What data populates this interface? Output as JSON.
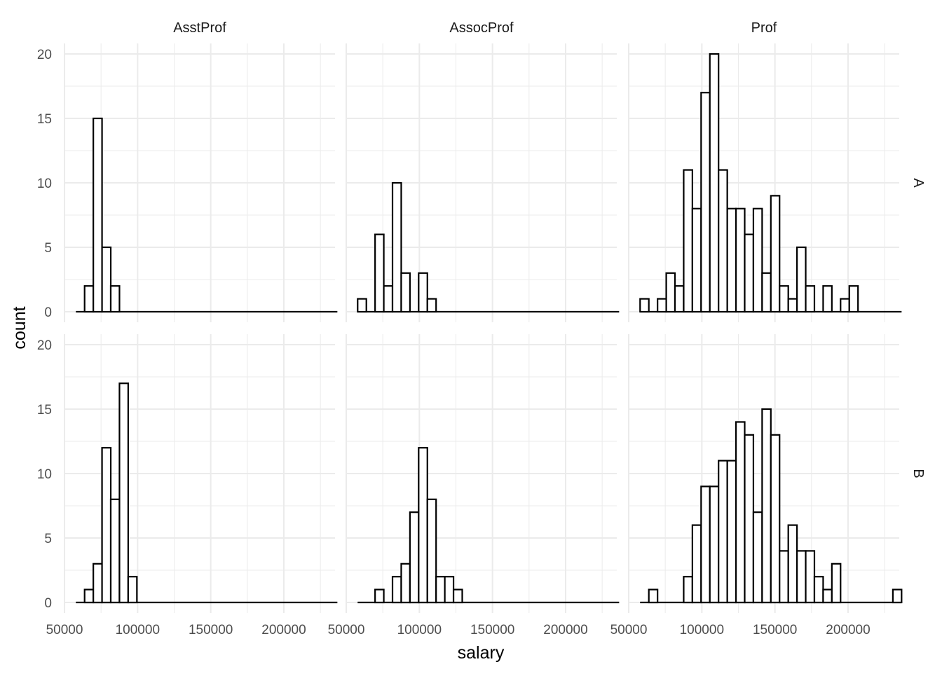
{
  "chart_data": {
    "type": "bar",
    "subtype": "faceted-histogram",
    "xlabel": "salary",
    "ylabel": "count",
    "xlim": [
      50000,
      235000
    ],
    "ylim": [
      0,
      20
    ],
    "x_ticks": [
      50000,
      100000,
      150000,
      200000
    ],
    "x_tick_labels": [
      "50000",
      "100000",
      "150000",
      "200000"
    ],
    "y_ticks": [
      0,
      5,
      10,
      15,
      20
    ],
    "y_tick_labels": [
      "0",
      "5",
      "10",
      "15",
      "20"
    ],
    "bin_width": 5960,
    "bin_start": 57800,
    "bin_count": 30,
    "grid": true,
    "columns": [
      "AsstProf",
      "AssocProf",
      "Prof"
    ],
    "rows": [
      "A",
      "B"
    ],
    "panels": [
      {
        "row": "A",
        "col": "AsstProf",
        "counts": [
          0,
          2,
          15,
          5,
          2,
          0,
          0,
          0,
          0,
          0,
          0,
          0,
          0,
          0,
          0,
          0,
          0,
          0,
          0,
          0,
          0,
          0,
          0,
          0,
          0,
          0,
          0,
          0,
          0,
          0
        ]
      },
      {
        "row": "A",
        "col": "AssocProf",
        "counts": [
          1,
          0,
          6,
          2,
          10,
          3,
          0,
          3,
          1,
          0,
          0,
          0,
          0,
          0,
          0,
          0,
          0,
          0,
          0,
          0,
          0,
          0,
          0,
          0,
          0,
          0,
          0,
          0,
          0,
          0
        ]
      },
      {
        "row": "A",
        "col": "Prof",
        "counts": [
          1,
          0,
          1,
          3,
          2,
          11,
          8,
          17,
          20,
          11,
          8,
          8,
          6,
          8,
          3,
          9,
          2,
          1,
          5,
          2,
          0,
          2,
          0,
          1,
          2,
          0,
          0,
          0,
          0,
          0
        ]
      },
      {
        "row": "B",
        "col": "AsstProf",
        "counts": [
          0,
          1,
          3,
          12,
          8,
          17,
          2,
          0,
          0,
          0,
          0,
          0,
          0,
          0,
          0,
          0,
          0,
          0,
          0,
          0,
          0,
          0,
          0,
          0,
          0,
          0,
          0,
          0,
          0,
          0
        ]
      },
      {
        "row": "B",
        "col": "AssocProf",
        "counts": [
          0,
          0,
          1,
          0,
          2,
          3,
          7,
          12,
          8,
          2,
          2,
          1,
          0,
          0,
          0,
          0,
          0,
          0,
          0,
          0,
          0,
          0,
          0,
          0,
          0,
          0,
          0,
          0,
          0,
          0
        ]
      },
      {
        "row": "B",
        "col": "Prof",
        "counts": [
          0,
          1,
          0,
          0,
          0,
          2,
          6,
          9,
          9,
          11,
          11,
          14,
          13,
          7,
          15,
          13,
          4,
          6,
          4,
          4,
          2,
          1,
          3,
          0,
          0,
          0,
          0,
          0,
          0,
          1
        ]
      }
    ]
  },
  "colors": {
    "bar_fill": "#ffffff",
    "bar_stroke": "#000000",
    "grid": "#ebebeb",
    "tick_text": "#4d4d4d"
  }
}
